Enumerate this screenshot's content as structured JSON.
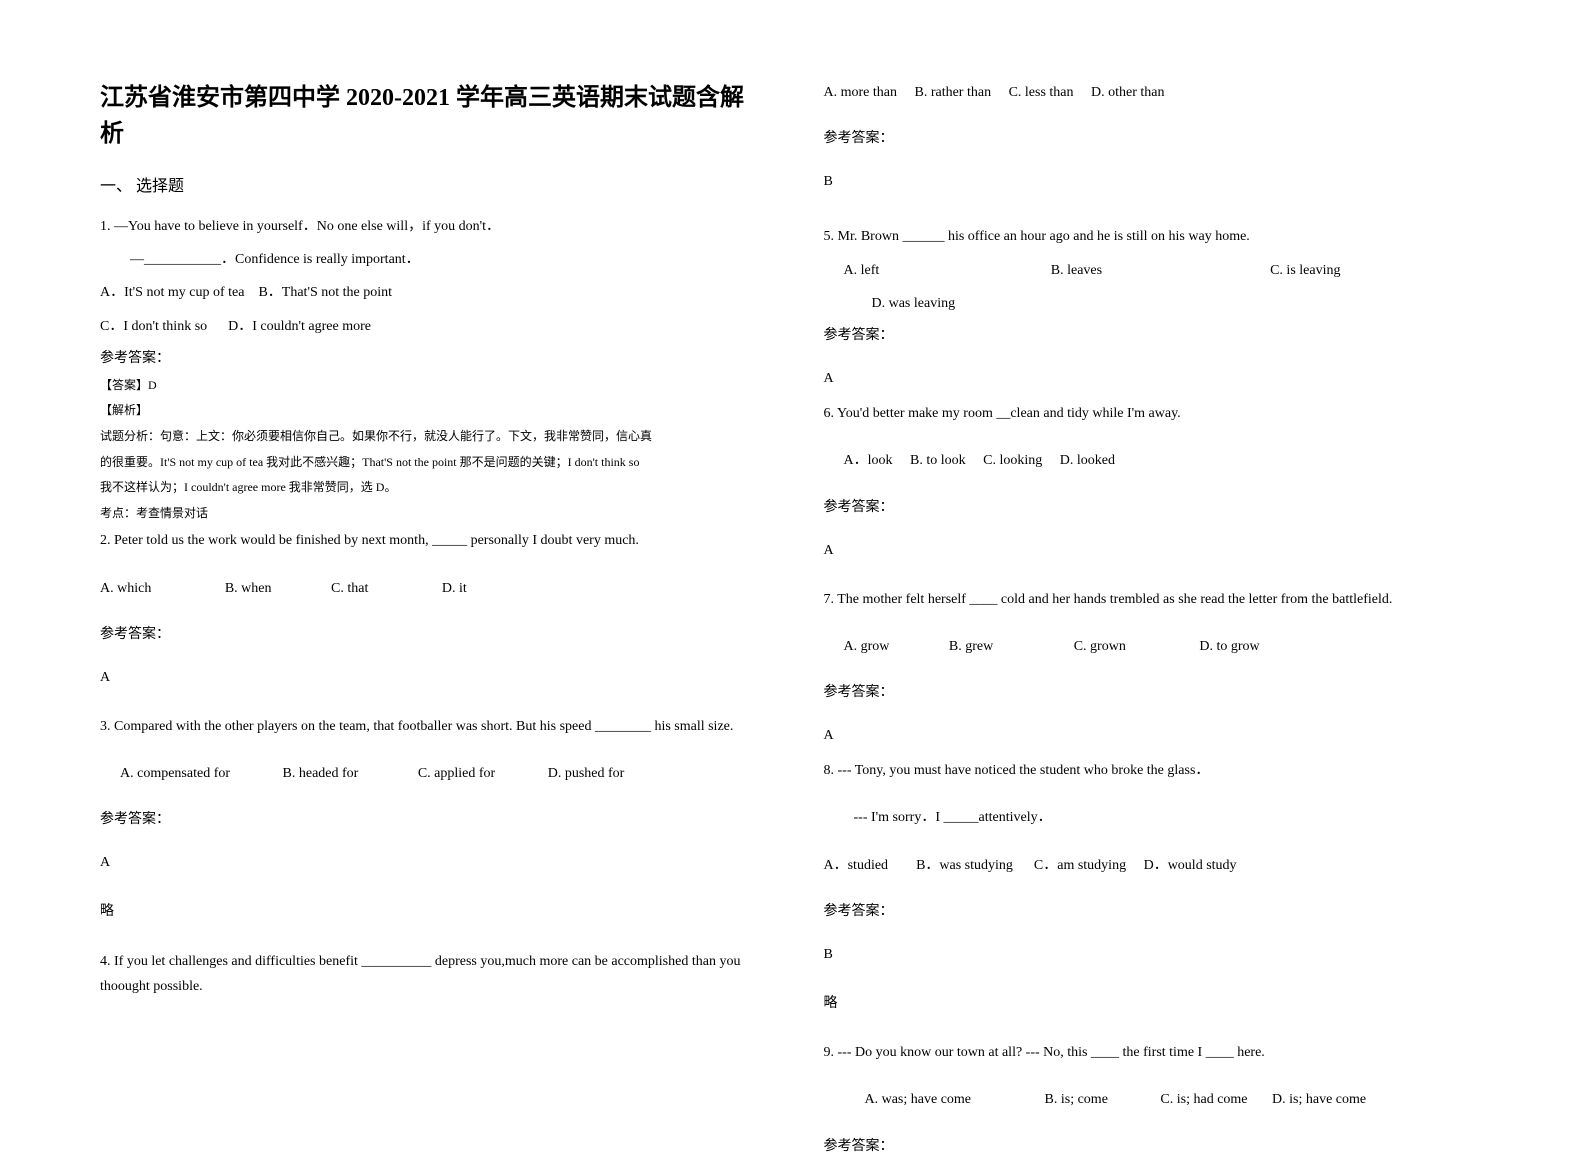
{
  "left": {
    "title": "江苏省淮安市第四中学 2020-2021 学年高三英语期末试题含解析",
    "section": "一、 选择题",
    "q1": {
      "text": "1. —You have to believe in yourself．No one else will，if you don't．",
      "text2": "—___________．Confidence is really important．",
      "optA": "A．It'S not my cup of tea",
      "optB": "B．That'S not the point",
      "optC": "C．I don't think so",
      "optD": "D．I couldn't agree more",
      "answerLabel": "参考答案：",
      "answerLine": "【答案】D",
      "analysisLabel": "【解析】",
      "analysis1": "试题分析：句意：上文：你必须要相信你自己。如果你不行，就没人能行了。下文，我非常赞同，信心真",
      "analysis2": "的很重要。It'S not my cup of tea 我对此不感兴趣；That'S not the point 那不是问题的关键；I don't think so",
      "analysis3": "我不这样认为；I couldn't agree more 我非常赞同，选 D。",
      "examPoint": "考点：考查情景对话"
    },
    "q2": {
      "text": "2. Peter told us the work would be finished by next month, _____ personally I doubt very much.",
      "optA": "A. which",
      "optB": "B. when",
      "optC": "C. that",
      "optD": "D. it",
      "answerLabel": "参考答案：",
      "answer": "A"
    },
    "q3": {
      "text": "3. Compared with the other players on the team, that footballer was short. But his speed ________ his small size.",
      "optA": "A. compensated for",
      "optB": "B. headed for",
      "optC": "C. applied for",
      "optD": "D. pushed for",
      "answerLabel": "参考答案：",
      "answer": "A",
      "brief": "略"
    },
    "q4": {
      "text": "4. If you let challenges and difficulties benefit __________ depress you,much more can be accomplished than you thoought possible."
    }
  },
  "right": {
    "q4opts": {
      "optA": "A. more than",
      "optB": "B. rather than",
      "optC": "C. less than",
      "optD": "D. other than",
      "answerLabel": "参考答案：",
      "answer": "B"
    },
    "q5": {
      "text": "5. Mr. Brown ______ his office an hour ago and he is still on his way home.",
      "optA": "A. left",
      "optB": "B. leaves",
      "optC": "C. is leaving",
      "optD": "D. was leaving",
      "answerLabel": "参考答案：",
      "answer": "A"
    },
    "q6": {
      "text": "6. You'd better make my room __clean and tidy while I'm away.",
      "optA": "A．look",
      "optB": "B. to look",
      "optC": "C. looking",
      "optD": "D. looked",
      "answerLabel": "参考答案：",
      "answer": "A"
    },
    "q7": {
      "text": "7. The mother felt herself ____ cold and her hands trembled as she read the letter from the battlefield.",
      "optA": "A. grow",
      "optB": "B. grew",
      "optC": "C. grown",
      "optD": "D. to grow",
      "answerLabel": "参考答案：",
      "answer": "A"
    },
    "q8": {
      "text": "8. --- Tony, you must have noticed the student who broke the glass．",
      "text2": "--- I'm sorry．I _____attentively．",
      "optA": "A．studied",
      "optB": "B．was studying",
      "optC": "C．am studying",
      "optD": "D．would study",
      "answerLabel": "参考答案：",
      "answer": "B",
      "brief": "略"
    },
    "q9": {
      "text": "9. --- Do you know our town at all?   --- No, this ____ the first time I ____ here.",
      "optA": "A. was; have come",
      "optB": "B. is; come",
      "optC": "C. is; had come",
      "optD": "D. is; have come",
      "answerLabel": "参考答案："
    }
  }
}
